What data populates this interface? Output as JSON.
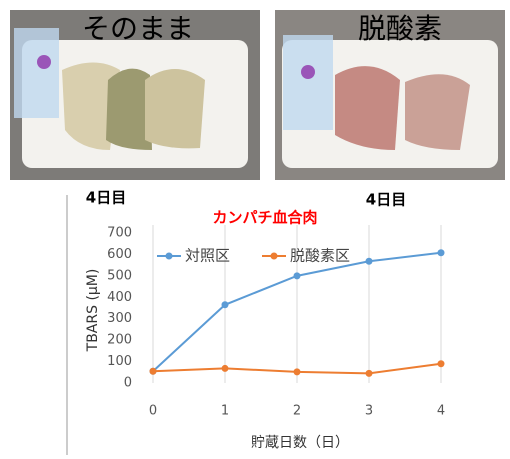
{
  "photos": [
    {
      "label": "そのまま",
      "caption": "4日目"
    },
    {
      "label": "脱酸素",
      "caption": "4日目"
    }
  ],
  "chart_data": {
    "type": "line",
    "title": "カンパチ血合肉",
    "x_label": "貯蔵日数（日）",
    "y_label": "TBARS (μM)",
    "x": [
      0,
      1,
      2,
      3,
      4
    ],
    "series": [
      {
        "name": "対照区",
        "color": "#5b9bd5",
        "values": [
          55,
          365,
          500,
          568,
          608
        ]
      },
      {
        "name": "脱酸素区",
        "color": "#ed7d31",
        "values": [
          55,
          68,
          52,
          45,
          90
        ]
      }
    ],
    "xlim": [
      0,
      4
    ],
    "xticks": [
      0,
      1,
      2,
      3,
      4
    ],
    "ylim": [
      0,
      700
    ],
    "yticks": [
      0,
      100,
      200,
      300,
      400,
      500,
      600,
      700
    ],
    "grid": "x",
    "legend": "top-left",
    "title_color": "#ff0000"
  }
}
